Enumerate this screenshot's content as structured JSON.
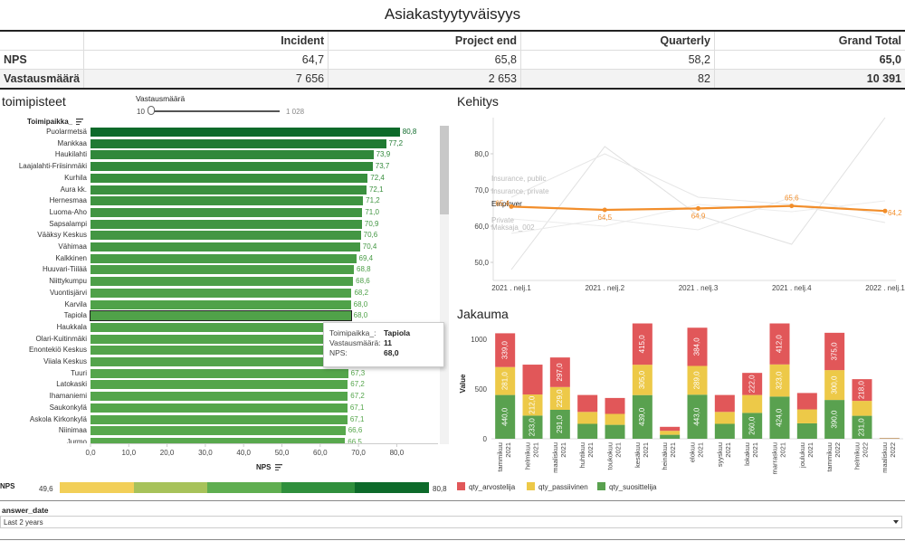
{
  "title": "Asiakastyytyväisyys",
  "summary": {
    "columns": [
      "",
      "Incident",
      "Project end",
      "Quarterly",
      "Grand Total"
    ],
    "rows": [
      {
        "label": "NPS",
        "values": [
          "64,7",
          "65,8",
          "58,2",
          "65,0"
        ]
      },
      {
        "label": "Vastausmäärä",
        "values": [
          "7 656",
          "2 653",
          "82",
          "10 391"
        ]
      }
    ]
  },
  "toimipisteet": {
    "title": "toimipisteet",
    "slider_label": "Vastausmäärä",
    "slider_min": "10",
    "slider_max": "1 028",
    "slider_fraction": 0.0,
    "column_header": "Toimipaikka_",
    "x_axis_label": "NPS",
    "x_ticks": [
      "0,0",
      "10,0",
      "20,0",
      "30,0",
      "40,0",
      "50,0",
      "60,0",
      "70,0",
      "80,0"
    ],
    "legend_label": "NPS",
    "legend_min": "49,6",
    "legend_max": "80,8",
    "legend_colors": [
      "#f2cf58",
      "#a7c25a",
      "#5fae50",
      "#2f8f3c",
      "#0d6a2a"
    ],
    "tooltip": {
      "rows": [
        {
          "k": "Toimipaikka_:",
          "v": "Tapiola"
        },
        {
          "k": "Vastausmäärä:",
          "v": "11"
        },
        {
          "k": "NPS:",
          "v": "68,0"
        }
      ]
    }
  },
  "chart_data": [
    {
      "type": "bar",
      "title": "toimipisteet",
      "orientation": "horizontal",
      "xlabel": "NPS",
      "xlim": [
        0,
        80
      ],
      "categories": [
        "Puolarmetsä",
        "Mankkaa",
        "Haukilahti",
        "Laajalahti-Friisinmäki",
        "Kurhila",
        "Aura kk.",
        "Hernesmaa",
        "Luoma-Aho",
        "Sapsalampi",
        "Vääksy Keskus",
        "Vähimaa",
        "Kalkkinen",
        "Huuvari-Tiilää",
        "Niittykumpu",
        "Vuontisjärvi",
        "Karvila",
        "Tapiola",
        "Haukkala",
        "Olari-Kuitinmäki",
        "Enontekiö Keskus",
        "Viiala Keskus",
        "Tuuri",
        "Latokaski",
        "Ihamaniemi",
        "Saukonkylä",
        "Askola Kirkonkylä",
        "Niinimaa",
        "Jurmo"
      ],
      "values": [
        80.8,
        77.2,
        73.9,
        73.7,
        72.4,
        72.1,
        71.2,
        71.0,
        70.9,
        70.6,
        70.4,
        69.4,
        68.8,
        68.6,
        68.2,
        68.0,
        68.0,
        67.8,
        67.6,
        67.5,
        67.4,
        67.3,
        67.2,
        67.2,
        67.1,
        67.1,
        66.6,
        66.5
      ],
      "value_labels": [
        "80,8",
        "77,2",
        "73,9",
        "73,7",
        "72,4",
        "72,1",
        "71,2",
        "71,0",
        "70,9",
        "70,6",
        "70,4",
        "69,4",
        "68,8",
        "68,6",
        "68,2",
        "68,0",
        "68,0",
        "",
        "",
        "",
        "",
        "67,3",
        "67,2",
        "67,2",
        "67,1",
        "67,1",
        "66,6",
        "66,5"
      ]
    },
    {
      "type": "line",
      "title": "Kehitys",
      "categories": [
        "2021 . nelj.1",
        "2021 . nelj.2",
        "2021 . nelj.3",
        "2021 . nelj.4",
        "2022 . nelj.1"
      ],
      "ylim": [
        45,
        90
      ],
      "y_ticks": [
        "50,0",
        "60,0",
        "70,0",
        "80,0"
      ],
      "series": [
        {
          "name": "Employer",
          "values": [
            65.4,
            64.5,
            64.9,
            65.6,
            64.2
          ],
          "value_labels": [
            "65,4",
            "64,5",
            "64,9",
            "65,6",
            "64,2"
          ],
          "color": "#f28e2b"
        },
        {
          "name": "Insurance, public",
          "values": [
            48,
            82,
            63,
            55,
            90
          ],
          "color": "#e0e0e0"
        },
        {
          "name": "Insurance, private",
          "values": [
            68,
            80,
            68,
            66,
            61
          ],
          "color": "#e6e6e6"
        },
        {
          "name": "Private",
          "values": [
            62,
            60,
            66,
            64,
            67
          ],
          "color": "#ececec"
        },
        {
          "name": "Maksaja_002",
          "values": [
            58,
            62,
            59,
            68,
            63
          ],
          "color": "#e9e9e9"
        }
      ]
    },
    {
      "type": "bar",
      "stacked": true,
      "title": "Jakauma",
      "ylabel": "Value",
      "ylim": [
        0,
        1100
      ],
      "y_ticks": [
        "0",
        "500",
        "1000"
      ],
      "categories": [
        {
          "month": "tammikuu",
          "year": "2021"
        },
        {
          "month": "helmikuu",
          "year": "2021"
        },
        {
          "month": "maaliskuu",
          "year": "2021"
        },
        {
          "month": "huhtikuu",
          "year": "2021"
        },
        {
          "month": "toukokuu",
          "year": "2021"
        },
        {
          "month": "kesäkuu",
          "year": "2021"
        },
        {
          "month": "heinäkuu",
          "year": "2021"
        },
        {
          "month": "elokuu",
          "year": "2021"
        },
        {
          "month": "syyskuu",
          "year": "2021"
        },
        {
          "month": "lokakuu",
          "year": "2021"
        },
        {
          "month": "marraskuu",
          "year": "2021"
        },
        {
          "month": "joulukuu",
          "year": "2021"
        },
        {
          "month": "tammikuu",
          "year": "2022"
        },
        {
          "month": "helmikuu",
          "year": "2022"
        },
        {
          "month": "maaliskuu",
          "year": "2022"
        }
      ],
      "series": [
        {
          "name": "qty_suosittelija",
          "color": "#59a14f",
          "values": [
            440,
            233,
            291,
            150,
            140,
            439,
            40,
            443,
            150,
            260,
            424,
            155,
            390,
            231,
            3
          ],
          "labels": [
            "440,0",
            "233,0",
            "291,0",
            "",
            "",
            "439,0",
            "",
            "443,0",
            "",
            "260,0",
            "424,0",
            "",
            "390,0",
            "231,0",
            ""
          ]
        },
        {
          "name": "qty_passiivinen",
          "color": "#edc948",
          "values": [
            281,
            212,
            229,
            120,
            110,
            305,
            40,
            289,
            120,
            180,
            323,
            140,
            300,
            150,
            2
          ],
          "labels": [
            "281,0",
            "212,0",
            "229,0",
            "",
            "",
            "305,0",
            "",
            "289,0",
            "",
            "",
            "323,0",
            "",
            "300,0",
            "",
            ""
          ]
        },
        {
          "name": "qty_arvostelija",
          "color": "#e15759",
          "values": [
            339,
            300,
            297,
            170,
            160,
            415,
            40,
            384,
            170,
            222,
            412,
            165,
            375,
            218,
            3
          ],
          "labels": [
            "339,0",
            "",
            "297,0",
            "",
            "",
            "415,0",
            "",
            "384,0",
            "",
            "222,0",
            "412,0",
            "",
            "375,0",
            "218,0",
            ""
          ]
        }
      ]
    }
  ],
  "kehitys": {
    "title": "Kehitys"
  },
  "jakauma": {
    "title": "Jakauma"
  },
  "filter": {
    "label": "answer_date",
    "value": "Last 2 years"
  }
}
